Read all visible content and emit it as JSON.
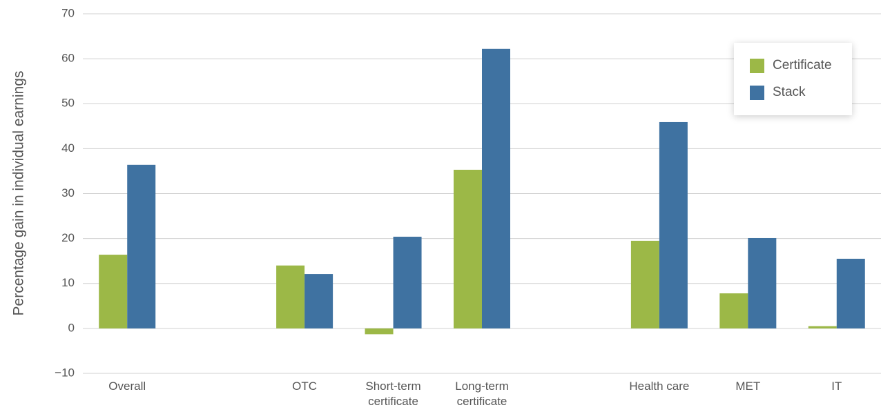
{
  "chart_data": {
    "type": "bar",
    "y_label": "Percentage gain in individual earnings",
    "categories": [
      "Overall",
      null,
      "OTC",
      "Short-term certificate",
      "Long-term certificate",
      null,
      "Health care",
      "MET",
      "IT"
    ],
    "series": [
      {
        "name": "Certificate",
        "color": "#9cb847",
        "values": [
          16.4,
          null,
          14.0,
          -1.3,
          35.3,
          null,
          19.5,
          7.8,
          0.5
        ]
      },
      {
        "name": "Stack",
        "color": "#3f72a1",
        "values": [
          36.4,
          null,
          12.1,
          20.4,
          62.2,
          null,
          45.9,
          20.1,
          15.5
        ]
      }
    ],
    "ylim": [
      -10,
      70
    ],
    "yticks": [
      {
        "value": -10,
        "label": "−10"
      },
      0,
      10,
      20,
      30,
      40,
      50,
      60,
      70
    ],
    "grid": true,
    "legend": "upper right"
  }
}
